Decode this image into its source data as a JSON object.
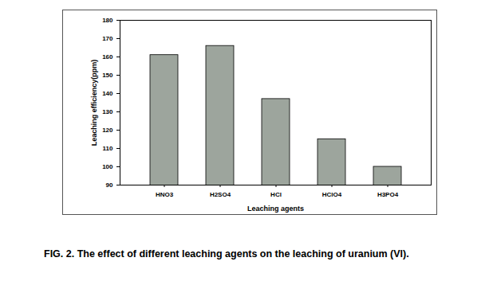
{
  "chart_data": {
    "type": "bar",
    "title": "FIG. 2. The effect of different leaching agents on the leaching of uranium (VI).",
    "x_label": "Leaching agents",
    "y_label": "Leaching efficiency(ppm)",
    "categories": [
      "HNO3",
      "H2SO4",
      "HCl",
      "HClO4",
      "H3PO4"
    ],
    "values": [
      161,
      166,
      137,
      115,
      100
    ],
    "color": "#9da59d",
    "ylim": [
      90,
      180
    ],
    "yticks": [
      90,
      100,
      110,
      120,
      130,
      140,
      150,
      160,
      170,
      180
    ],
    "grid": false
  }
}
